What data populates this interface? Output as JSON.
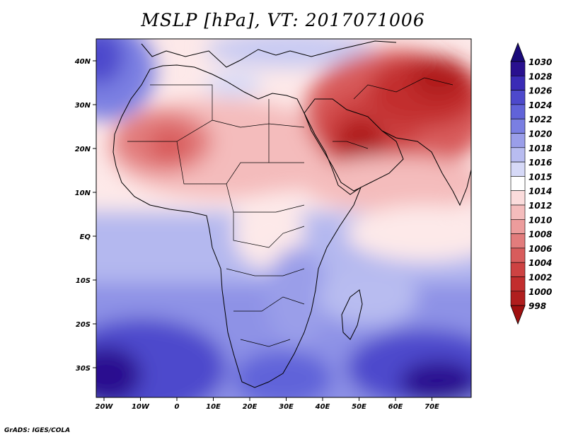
{
  "title": "MSLP [hPa], VT: 2017071006",
  "credit": "GrADS: IGES/COLA",
  "lon_ticks": [
    "20W",
    "10W",
    "0",
    "10E",
    "20E",
    "30E",
    "40E",
    "50E",
    "60E",
    "70E"
  ],
  "lat_ticks": [
    "40N",
    "30N",
    "20N",
    "10N",
    "EQ",
    "10S",
    "20S",
    "30S"
  ],
  "colorbar_labels": [
    "1030",
    "1028",
    "1026",
    "1024",
    "1022",
    "1020",
    "1018",
    "1016",
    "1015",
    "1014",
    "1012",
    "1010",
    "1008",
    "1006",
    "1004",
    "1002",
    "1000",
    "998"
  ],
  "colorbar_colors": [
    "#29108f",
    "#3a2bb6",
    "#4d49cc",
    "#6163d9",
    "#7a7fe2",
    "#9a9ee9",
    "#b8bcf0",
    "#d6d9f7",
    "#ffffff",
    "#fbdcdc",
    "#f4bcbc",
    "#ec9c9c",
    "#e27c7c",
    "#d85c5c",
    "#cd4242",
    "#c22e2e",
    "#b01e1e"
  ],
  "colorbar_top_color": "#1a0a7a",
  "colorbar_bottom_color": "#a01010"
}
